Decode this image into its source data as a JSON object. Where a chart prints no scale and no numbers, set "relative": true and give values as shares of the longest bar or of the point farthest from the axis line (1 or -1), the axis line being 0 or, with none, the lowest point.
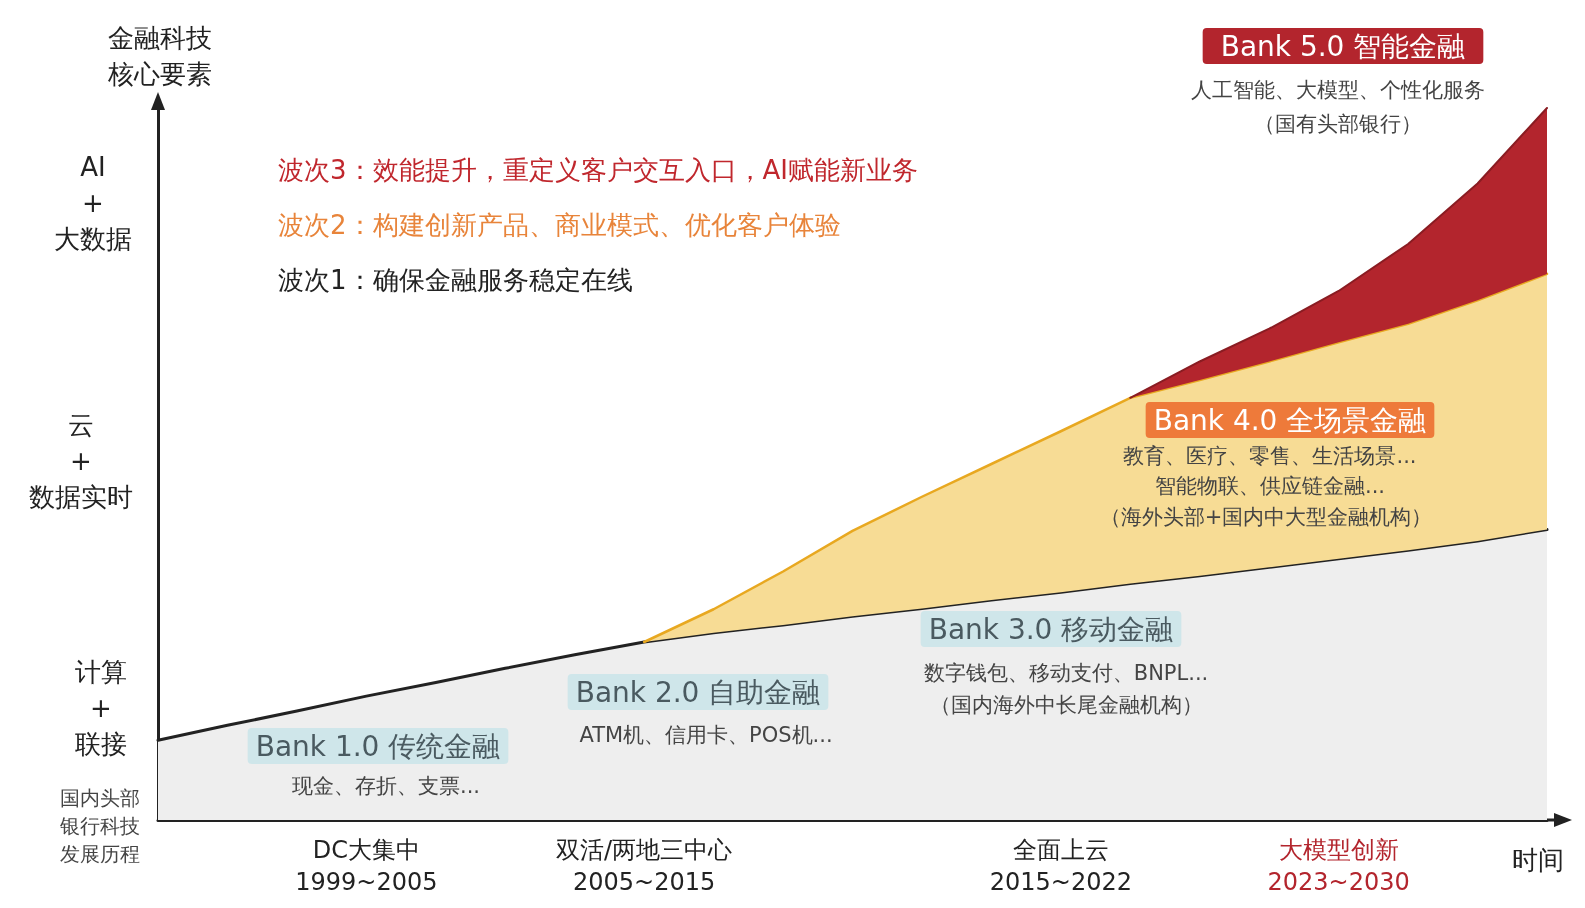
{
  "chart_data": {
    "type": "area",
    "relative": true,
    "stacked": true,
    "grid": false,
    "marker": "none",
    "ylabel": "金融科技核心要素",
    "xlabel": "时间",
    "categories": [
      null,
      null,
      null,
      "DC大集中\n1999~2005",
      null,
      null,
      null,
      "双活/两地三中心\n2005~2015",
      null,
      null,
      null,
      null,
      null,
      "全面上云\n2015~2022",
      null,
      null,
      null,
      "大模型创新\n2023~2030",
      null,
      null,
      null
    ],
    "series": [
      {
        "color": "#eeeeee",
        "values": [
          0.112,
          0.133,
          0.153,
          0.174,
          0.193,
          0.213,
          0.232,
          0.25,
          0.263,
          0.274,
          0.286,
          0.297,
          0.309,
          0.32,
          0.332,
          0.343,
          0.355,
          0.367,
          0.379,
          0.392,
          0.408
        ]
      },
      {
        "color": "#f7dc95",
        "values": [
          null,
          null,
          null,
          null,
          null,
          null,
          null,
          0,
          0.033,
          0.075,
          0.12,
          0.157,
          0.191,
          0.226,
          0.261,
          0.275,
          0.289,
          0.304,
          0.318,
          0.338,
          0.359
        ]
      },
      {
        "color": "#b3252d",
        "values": [
          null,
          null,
          null,
          null,
          null,
          null,
          null,
          null,
          null,
          null,
          null,
          null,
          null,
          null,
          0,
          0.026,
          0.046,
          0.072,
          0.112,
          0.164,
          0.233
        ]
      }
    ],
    "annotations": [
      "波次3：效能提升，重定义客户交互入口，AI赋能新业务",
      "波次2：构建创新产品、商业模式、优化客户体验",
      "波次1：确保金融服务稳定在线",
      "Bank 1.0 传统金融",
      "现金、存折、支票...",
      "Bank 2.0 自助金融",
      "ATM机、信用卡、POS机...",
      "Bank 3.0 移动金融",
      "数字钱包、移动支付、BNPL...",
      "（国内海外中长尾金融机构）",
      "Bank 4.0 全场景金融",
      "教育、医疗、零售、生活场景...",
      "智能物联、供应链金融...",
      "（海外头部+国内中大型金融机构）",
      "Bank 5.0 智能金融",
      "人工智能、大模型、个性化服务",
      "（国有头部银行）",
      "AI\n+\n大数据",
      "云\n+\n数据实时",
      "计算\n+\n联接",
      "国内头部银行科技发展历程"
    ]
  }
}
